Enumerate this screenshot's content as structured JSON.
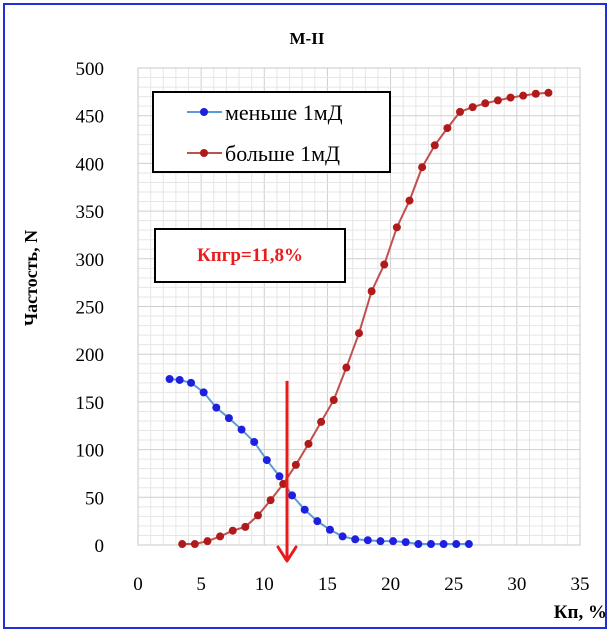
{
  "chart_data": {
    "type": "line",
    "title": "М-II",
    "xlabel": "Кп, %",
    "ylabel": "Частость, N",
    "xlim": [
      0,
      35
    ],
    "ylim": [
      0,
      500
    ],
    "x_ticks": [
      0,
      5,
      10,
      15,
      20,
      25,
      30,
      35
    ],
    "y_ticks": [
      0,
      50,
      100,
      150,
      200,
      250,
      300,
      350,
      400,
      450,
      500
    ],
    "grid": "major and minor",
    "legend_position": "top-left",
    "series": [
      {
        "name": "меньше 1мД",
        "color": "#1f1fe0",
        "line_color": "#5b9bd5",
        "x": [
          2.5,
          3.3,
          4.2,
          5.2,
          6.2,
          7.2,
          8.2,
          9.2,
          10.2,
          11.2,
          12.2,
          13.2,
          14.2,
          15.2,
          16.2,
          17.2,
          18.2,
          19.2,
          20.2,
          21.2,
          22.2,
          23.2,
          24.2,
          25.2,
          26.2
        ],
        "values": [
          174,
          173,
          170,
          160,
          144,
          133,
          121,
          108,
          89,
          72,
          52,
          37,
          25,
          16,
          9,
          6,
          5,
          4,
          4,
          3,
          1,
          1,
          1,
          1,
          1
        ]
      },
      {
        "name": "больше 1мД",
        "color": "#b01a1a",
        "line_color": "#c0504d",
        "x": [
          3.5,
          4.5,
          5.5,
          6.5,
          7.5,
          8.5,
          9.5,
          10.5,
          11.5,
          12.5,
          13.5,
          14.5,
          15.5,
          16.5,
          17.5,
          18.5,
          19.5,
          20.5,
          21.5,
          22.5,
          23.5,
          24.5,
          25.5,
          26.5,
          27.5,
          28.5,
          29.5,
          30.5,
          31.5,
          32.5
        ],
        "values": [
          1,
          1,
          4,
          9,
          15,
          19,
          31,
          47,
          64,
          84,
          106,
          129,
          152,
          186,
          222,
          266,
          294,
          333,
          361,
          396,
          419,
          437,
          454,
          459,
          463,
          466,
          469,
          471,
          473,
          474
        ]
      }
    ],
    "annotation": {
      "text": "Кпгр=11,8%",
      "text_color": "#e81c1c",
      "arrow_x": 11.8,
      "arrow_from_y": 172,
      "arrow_to_y": 0,
      "arrow_color": "#e81c1c"
    }
  }
}
